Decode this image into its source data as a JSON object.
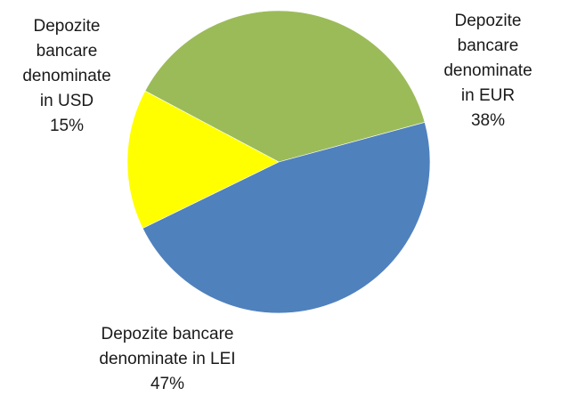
{
  "chart_data": {
    "type": "pie",
    "title": "",
    "start_angle_deg": -152,
    "direction": "clockwise",
    "slices": [
      {
        "key": "eur",
        "label_lines": [
          "Depozite",
          "bancare",
          "denominate",
          "in EUR"
        ],
        "value_label": "38%",
        "value": 38,
        "color": "#9bbb59"
      },
      {
        "key": "lei",
        "label_lines": [
          "Depozite bancare",
          "denominate in LEI"
        ],
        "value_label": "47%",
        "value": 47,
        "color": "#4f81bd"
      },
      {
        "key": "usd",
        "label_lines": [
          "Depozite",
          "bancare",
          "denominate",
          "in USD"
        ],
        "value_label": "15%",
        "value": 15,
        "color": "#ffff00"
      }
    ],
    "legend": "none",
    "labels_outside": true
  }
}
